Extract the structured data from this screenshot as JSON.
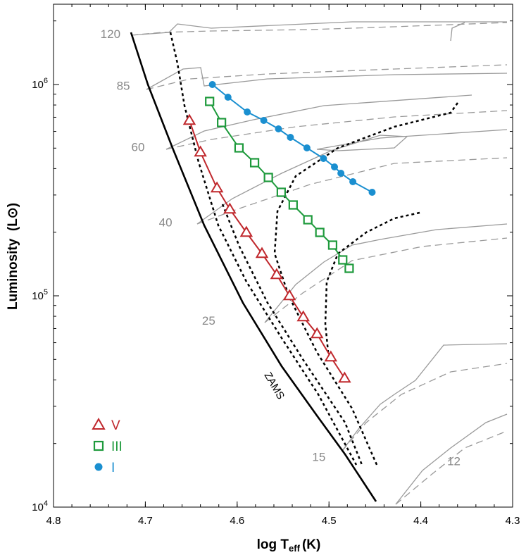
{
  "chart_data": {
    "type": "scatter",
    "title": "",
    "xlabel": "log T",
    "xlabel_sub": "eff",
    "xlabel_unit": "(K)",
    "ylabel": "Luminosity  (L",
    "ylabel_symbol": "⊙",
    "ylabel_close": ")",
    "xlim": [
      4.8,
      4.3
    ],
    "ylim": [
      4.0,
      6.38
    ],
    "y_scale": "log",
    "x_ticks": [
      "4.8",
      "4.7",
      "4.6",
      "4.5",
      "4.4",
      "4.3"
    ],
    "x_tick_values": [
      4.8,
      4.7,
      4.6,
      4.5,
      4.4,
      4.3
    ],
    "y_tick_values": [
      4,
      5,
      6
    ],
    "y_tick_base": "10",
    "y_tick_exponents": [
      "4",
      "5",
      "6"
    ],
    "zams_label": "ZAMS",
    "track_masses": [
      {
        "label": "120",
        "x": 4.738,
        "y": 6.24
      },
      {
        "label": "85",
        "x": 4.724,
        "y": 5.995
      },
      {
        "label": "60",
        "x": 4.708,
        "y": 5.705
      },
      {
        "label": "40",
        "x": 4.678,
        "y": 5.348
      },
      {
        "label": "25",
        "x": 4.631,
        "y": 4.883
      },
      {
        "label": "15",
        "x": 4.511,
        "y": 4.238
      },
      {
        "label": "12",
        "x": 4.364,
        "y": 4.218
      }
    ],
    "series": [
      {
        "name": "V",
        "symbol": "triangle",
        "color": "#c0282d",
        "x": [
          4.652,
          4.64,
          4.622,
          4.608,
          4.59,
          4.573,
          4.557,
          4.543,
          4.528,
          4.513,
          4.498,
          4.483
        ],
        "y": [
          5.83,
          5.68,
          5.51,
          5.41,
          5.3,
          5.2,
          5.1,
          5.0,
          4.9,
          4.82,
          4.71,
          4.61
        ]
      },
      {
        "name": "III",
        "symbol": "square",
        "color": "#1e9a3c",
        "x": [
          4.63,
          4.617,
          4.598,
          4.581,
          4.566,
          4.552,
          4.539,
          4.523,
          4.51,
          4.496,
          4.485,
          4.478
        ],
        "y": [
          5.92,
          5.82,
          5.7,
          5.63,
          5.56,
          5.49,
          5.43,
          5.36,
          5.3,
          5.24,
          5.17,
          5.13
        ]
      },
      {
        "name": "I",
        "symbol": "circle",
        "color": "#1a8fd0",
        "x": [
          4.627,
          4.61,
          4.589,
          4.571,
          4.555,
          4.542,
          4.524,
          4.506,
          4.494,
          4.487,
          4.474,
          4.453
        ],
        "y": [
          6.0,
          5.94,
          5.87,
          5.83,
          5.79,
          5.75,
          5.7,
          5.65,
          5.61,
          5.58,
          5.54,
          5.49
        ]
      }
    ],
    "legend": [
      {
        "label": "V",
        "color": "#c0282d",
        "symbol": "triangle"
      },
      {
        "label": "III",
        "color": "#1e9a3c",
        "symbol": "square"
      },
      {
        "label": "I",
        "color": "#1a8fd0",
        "symbol": "circle"
      }
    ]
  }
}
